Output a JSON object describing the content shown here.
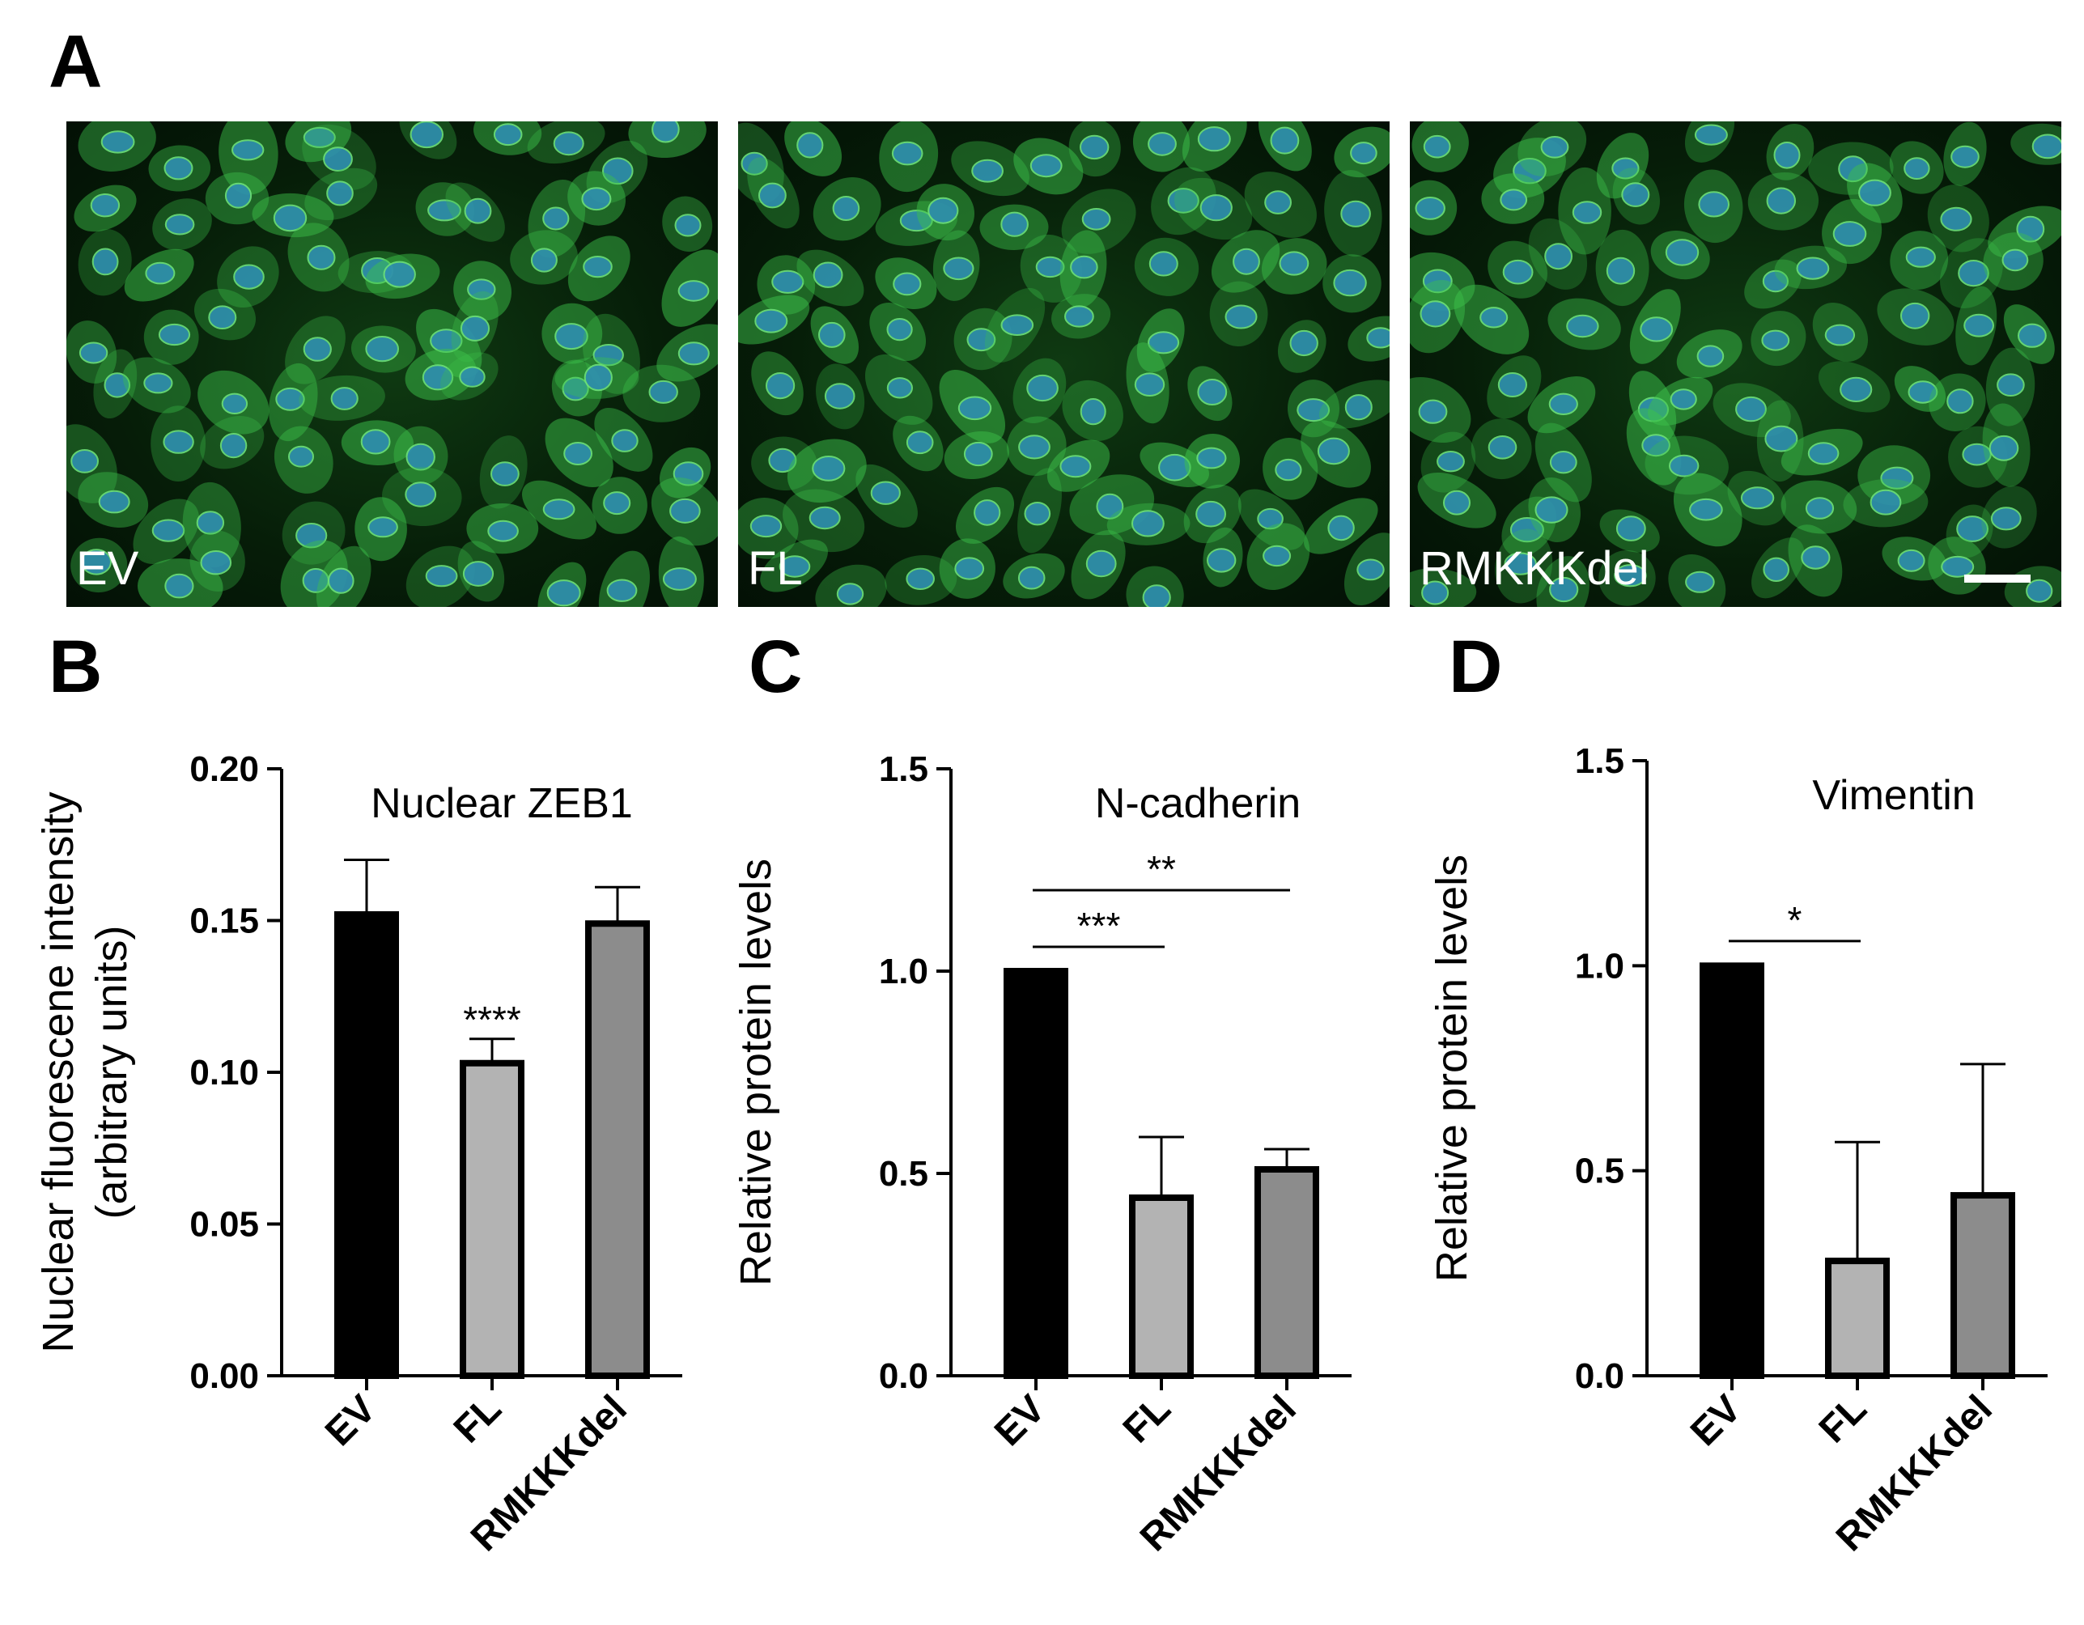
{
  "panels": {
    "a": "A",
    "b": "B",
    "c": "C",
    "d": "D"
  },
  "micrographs": [
    {
      "label": "EV",
      "scale_bar": false
    },
    {
      "label": "FL",
      "scale_bar": false
    },
    {
      "label": "RMKKKdel",
      "scale_bar": true
    }
  ],
  "colors": {
    "ev_bar": "#000000",
    "fl_bar": "#b3b3b3",
    "rmkkk_bar": "#8c8c8c",
    "cell_stain": "#3cc04a",
    "nucleus_stain": "#2f8fb0"
  },
  "chart_data": [
    {
      "type": "bar",
      "title": "Nuclear ZEB1",
      "ylabel_lines": [
        "Nuclear fluorescene intensity",
        "(arbitrary units)"
      ],
      "categories": [
        "EV",
        "FL",
        "RMKKKdel"
      ],
      "values": [
        0.152,
        0.103,
        0.149
      ],
      "errors": [
        0.018,
        0.008,
        0.012
      ],
      "ylim": [
        0,
        0.2
      ],
      "yticks": [
        0.0,
        0.05,
        0.1,
        0.15,
        0.2
      ],
      "ytick_labels": [
        "0.00",
        "0.05",
        "0.10",
        "0.15",
        "0.20"
      ],
      "annotations": [
        {
          "category": "FL",
          "text": "****"
        }
      ],
      "significance": []
    },
    {
      "type": "bar",
      "title": "N-cadherin",
      "ylabel_lines": [
        "Relative protein levels"
      ],
      "categories": [
        "EV",
        "FL",
        "RMKKKdel"
      ],
      "values": [
        1.0,
        0.44,
        0.51
      ],
      "errors": [
        0.0,
        0.15,
        0.05
      ],
      "ylim": [
        0,
        1.5
      ],
      "yticks": [
        0.0,
        0.5,
        1.0,
        1.5
      ],
      "ytick_labels": [
        "0.0",
        "0.5",
        "1.0",
        "1.5"
      ],
      "annotations": [],
      "significance": [
        {
          "from": "EV",
          "to": "FL",
          "text": "***",
          "y": 1.06
        },
        {
          "from": "EV",
          "to": "RMKKKdel",
          "text": "**",
          "y": 1.2
        }
      ]
    },
    {
      "type": "bar",
      "title": "Vimentin",
      "ylabel_lines": [
        "Relative protein levels"
      ],
      "categories": [
        "EV",
        "FL",
        "RMKKKdel"
      ],
      "values": [
        1.0,
        0.28,
        0.44
      ],
      "errors": [
        0.0,
        0.29,
        0.32
      ],
      "ylim": [
        0,
        1.5
      ],
      "yticks": [
        0.0,
        0.5,
        1.0,
        1.5
      ],
      "ytick_labels": [
        "0.0",
        "0.5",
        "1.0",
        "1.5"
      ],
      "annotations": [],
      "significance": [
        {
          "from": "EV",
          "to": "FL",
          "text": "*",
          "y": 1.06
        }
      ]
    }
  ]
}
